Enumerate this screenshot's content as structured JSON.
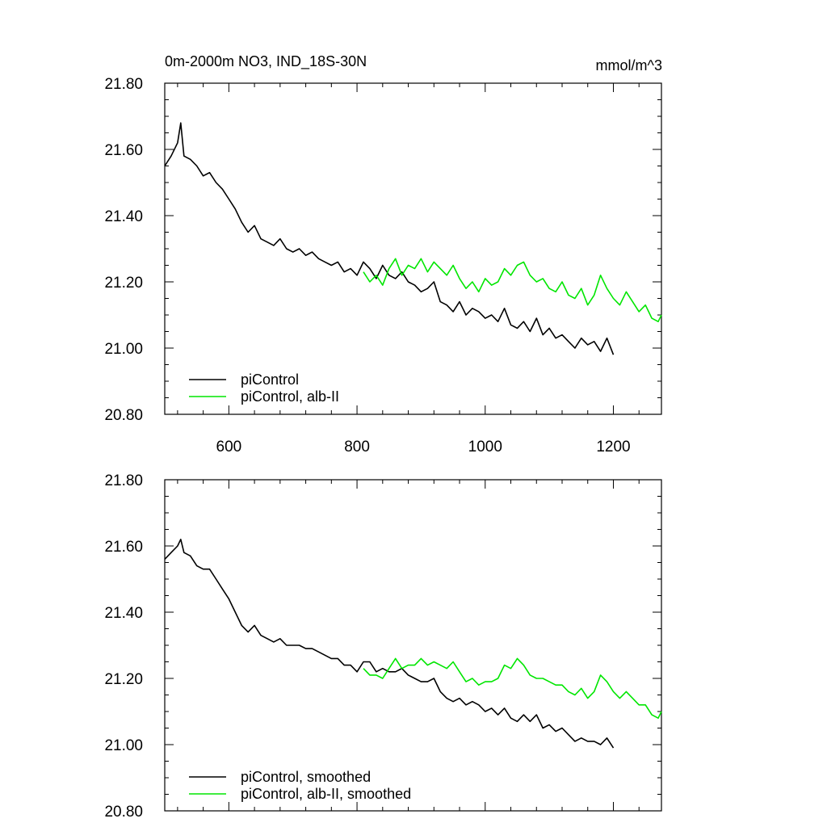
{
  "chart_data": [
    {
      "type": "line",
      "title": "0m-2000m NO3, IND_18S-30N",
      "units": "mmol/m^3",
      "xlim": [
        500,
        1275
      ],
      "ylim": [
        20.8,
        21.8
      ],
      "x_ticks": [
        600,
        800,
        1000,
        1200
      ],
      "x_tick_labels": [
        "600",
        "800",
        "1000",
        "1200"
      ],
      "y_ticks": [
        20.8,
        21.0,
        21.2,
        21.4,
        21.6,
        21.8
      ],
      "y_tick_labels": [
        "20.80",
        "21.00",
        "21.20",
        "21.40",
        "21.60",
        "21.80"
      ],
      "series": [
        {
          "name": "piControl",
          "color": "#000000",
          "x": [
            500,
            510,
            520,
            525,
            530,
            540,
            550,
            560,
            570,
            580,
            590,
            600,
            610,
            620,
            630,
            640,
            650,
            660,
            670,
            680,
            690,
            700,
            710,
            720,
            730,
            740,
            750,
            760,
            770,
            780,
            790,
            800,
            810,
            820,
            830,
            840,
            850,
            860,
            870,
            880,
            890,
            900,
            910,
            920,
            930,
            940,
            950,
            960,
            970,
            980,
            990,
            1000,
            1010,
            1020,
            1030,
            1040,
            1050,
            1060,
            1070,
            1080,
            1090,
            1100,
            1110,
            1120,
            1130,
            1140,
            1150,
            1160,
            1170,
            1180,
            1190,
            1200
          ],
          "values": [
            21.55,
            21.58,
            21.62,
            21.68,
            21.58,
            21.57,
            21.55,
            21.52,
            21.53,
            21.5,
            21.48,
            21.45,
            21.42,
            21.38,
            21.35,
            21.37,
            21.33,
            21.32,
            21.31,
            21.33,
            21.3,
            21.29,
            21.3,
            21.28,
            21.29,
            21.27,
            21.26,
            21.25,
            21.26,
            21.23,
            21.24,
            21.22,
            21.26,
            21.24,
            21.21,
            21.25,
            21.22,
            21.21,
            21.23,
            21.2,
            21.19,
            21.17,
            21.18,
            21.2,
            21.14,
            21.13,
            21.11,
            21.14,
            21.1,
            21.12,
            21.11,
            21.09,
            21.1,
            21.08,
            21.12,
            21.07,
            21.06,
            21.08,
            21.05,
            21.09,
            21.04,
            21.06,
            21.03,
            21.04,
            21.02,
            21.0,
            21.03,
            21.01,
            21.02,
            20.99,
            21.03,
            20.98
          ]
        },
        {
          "name": "piControl, alb-II",
          "color": "#00e600",
          "x": [
            810,
            820,
            830,
            840,
            850,
            860,
            870,
            880,
            890,
            900,
            910,
            920,
            930,
            940,
            950,
            960,
            970,
            980,
            990,
            1000,
            1010,
            1020,
            1030,
            1040,
            1050,
            1060,
            1070,
            1080,
            1090,
            1100,
            1110,
            1120,
            1130,
            1140,
            1150,
            1160,
            1170,
            1180,
            1190,
            1200,
            1210,
            1220,
            1230,
            1240,
            1250,
            1260,
            1270,
            1275
          ],
          "values": [
            21.23,
            21.2,
            21.22,
            21.19,
            21.24,
            21.27,
            21.22,
            21.25,
            21.24,
            21.27,
            21.23,
            21.26,
            21.24,
            21.22,
            21.25,
            21.21,
            21.18,
            21.2,
            21.17,
            21.21,
            21.19,
            21.2,
            21.24,
            21.22,
            21.25,
            21.26,
            21.22,
            21.2,
            21.21,
            21.18,
            21.17,
            21.2,
            21.16,
            21.15,
            21.18,
            21.13,
            21.16,
            21.22,
            21.18,
            21.15,
            21.13,
            21.17,
            21.14,
            21.11,
            21.13,
            21.09,
            21.08,
            21.1
          ]
        }
      ],
      "legend": {
        "position": "bottom-left",
        "entries": [
          "piControl",
          "piControl, alb-II"
        ]
      }
    },
    {
      "type": "line",
      "title": "",
      "xlim": [
        500,
        1275
      ],
      "ylim": [
        20.8,
        21.8
      ],
      "x_ticks": [
        600,
        800,
        1000,
        1200
      ],
      "y_ticks": [
        20.8,
        21.0,
        21.2,
        21.4,
        21.6,
        21.8
      ],
      "y_tick_labels": [
        "20.80",
        "21.00",
        "21.20",
        "21.40",
        "21.60",
        "21.80"
      ],
      "series": [
        {
          "name": "piControl, smoothed",
          "color": "#000000",
          "x": [
            500,
            510,
            520,
            525,
            530,
            540,
            550,
            560,
            570,
            580,
            590,
            600,
            610,
            620,
            630,
            640,
            650,
            660,
            670,
            680,
            690,
            700,
            710,
            720,
            730,
            740,
            750,
            760,
            770,
            780,
            790,
            800,
            810,
            820,
            830,
            840,
            850,
            860,
            870,
            880,
            890,
            900,
            910,
            920,
            930,
            940,
            950,
            960,
            970,
            980,
            990,
            1000,
            1010,
            1020,
            1030,
            1040,
            1050,
            1060,
            1070,
            1080,
            1090,
            1100,
            1110,
            1120,
            1130,
            1140,
            1150,
            1160,
            1170,
            1180,
            1190,
            1200
          ],
          "values": [
            21.56,
            21.58,
            21.6,
            21.62,
            21.58,
            21.57,
            21.54,
            21.53,
            21.53,
            21.5,
            21.47,
            21.44,
            21.4,
            21.36,
            21.34,
            21.36,
            21.33,
            21.32,
            21.31,
            21.32,
            21.3,
            21.3,
            21.3,
            21.29,
            21.29,
            21.28,
            21.27,
            21.26,
            21.26,
            21.24,
            21.24,
            21.22,
            21.25,
            21.25,
            21.22,
            21.23,
            21.22,
            21.22,
            21.23,
            21.21,
            21.2,
            21.19,
            21.19,
            21.2,
            21.16,
            21.14,
            21.13,
            21.14,
            21.12,
            21.13,
            21.12,
            21.1,
            21.11,
            21.09,
            21.11,
            21.08,
            21.07,
            21.09,
            21.07,
            21.09,
            21.05,
            21.06,
            21.04,
            21.05,
            21.03,
            21.01,
            21.02,
            21.01,
            21.01,
            21.0,
            21.02,
            20.99
          ]
        },
        {
          "name": "piControl, alb-II, smoothed",
          "color": "#00e600",
          "x": [
            810,
            820,
            830,
            840,
            850,
            860,
            870,
            880,
            890,
            900,
            910,
            920,
            930,
            940,
            950,
            960,
            970,
            980,
            990,
            1000,
            1010,
            1020,
            1030,
            1040,
            1050,
            1060,
            1070,
            1080,
            1090,
            1100,
            1110,
            1120,
            1130,
            1140,
            1150,
            1160,
            1170,
            1180,
            1190,
            1200,
            1210,
            1220,
            1230,
            1240,
            1250,
            1260,
            1270,
            1275
          ],
          "values": [
            21.23,
            21.21,
            21.21,
            21.2,
            21.23,
            21.26,
            21.23,
            21.24,
            21.24,
            21.26,
            21.24,
            21.25,
            21.24,
            21.23,
            21.25,
            21.22,
            21.19,
            21.2,
            21.18,
            21.19,
            21.19,
            21.2,
            21.24,
            21.23,
            21.26,
            21.24,
            21.21,
            21.2,
            21.2,
            21.19,
            21.18,
            21.18,
            21.16,
            21.15,
            21.17,
            21.14,
            21.16,
            21.21,
            21.19,
            21.16,
            21.14,
            21.16,
            21.14,
            21.12,
            21.12,
            21.09,
            21.08,
            21.1
          ]
        }
      ],
      "legend": {
        "position": "bottom-left",
        "entries": [
          "piControl, smoothed",
          "piControl, alb-II, smoothed"
        ]
      }
    }
  ]
}
